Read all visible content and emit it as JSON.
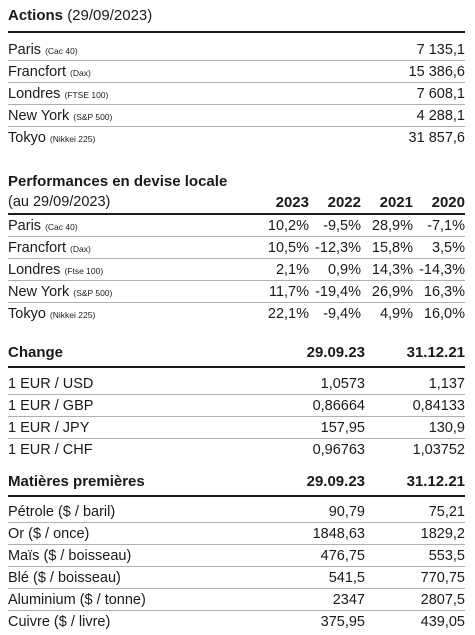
{
  "actions": {
    "title_bold": "Actions",
    "title_date": "(29/09/2023)",
    "rows": [
      {
        "name": "Paris",
        "index": "(Cac 40)",
        "value": "7 135,1"
      },
      {
        "name": "Francfort",
        "index": "(Dax)",
        "value": "15 386,6"
      },
      {
        "name": "Londres",
        "index": "(FTSE 100)",
        "value": "7 608,1"
      },
      {
        "name": "New York",
        "index": "(S&P 500)",
        "value": "4 288,1"
      },
      {
        "name": "Tokyo",
        "index": "(Nikkei 225)",
        "value": "31 857,6"
      }
    ]
  },
  "performances": {
    "title": "Performances en devise locale",
    "subtitle": "(au 29/09/2023)",
    "years": [
      "2023",
      "2022",
      "2021",
      "2020"
    ],
    "rows": [
      {
        "name": "Paris",
        "index": "(Cac 40)",
        "values": [
          "10,2%",
          "-9,5%",
          "28,9%",
          "-7,1%"
        ]
      },
      {
        "name": "Francfort",
        "index": "(Dax)",
        "values": [
          "10,5%",
          "-12,3%",
          "15,8%",
          "3,5%"
        ]
      },
      {
        "name": "Londres",
        "index": "(Ftse 100)",
        "values": [
          "2,1%",
          "0,9%",
          "14,3%",
          "-14,3%"
        ]
      },
      {
        "name": "New York",
        "index": "(S&P 500)",
        "values": [
          "11,7%",
          "-19,4%",
          "26,9%",
          "16,3%"
        ]
      },
      {
        "name": "Tokyo",
        "index": "(Nikkei 225)",
        "values": [
          "22,1%",
          "-9,4%",
          "4,9%",
          "16,0%"
        ]
      }
    ]
  },
  "change": {
    "title": "Change",
    "col1": "29.09.23",
    "col2": "31.12.21",
    "rows": [
      {
        "name": "1 EUR / USD",
        "v1": "1,0573",
        "v2": "1,137"
      },
      {
        "name": "1 EUR / GBP",
        "v1": "0,86664",
        "v2": "0,84133"
      },
      {
        "name": "1 EUR / JPY",
        "v1": "157,95",
        "v2": "130,9"
      },
      {
        "name": "1 EUR / CHF",
        "v1": "0,96763",
        "v2": "1,03752"
      }
    ]
  },
  "matieres": {
    "title": "Matières premières",
    "col1": "29.09.23",
    "col2": "31.12.21",
    "rows": [
      {
        "name": "Pétrole ($ / baril)",
        "v1": "90,79",
        "v2": "75,21"
      },
      {
        "name": "Or ($ / once)",
        "v1": "1848,63",
        "v2": "1829,2"
      },
      {
        "name": "Maïs ($ / boisseau)",
        "v1": "476,75",
        "v2": "553,5"
      },
      {
        "name": "Blé ($ / boisseau)",
        "v1": "541,5",
        "v2": "770,75"
      },
      {
        "name": "Aluminium ($ / tonne)",
        "v1": "2347",
        "v2": "2807,5"
      },
      {
        "name": "Cuivre ($ / livre)",
        "v1": "375,95",
        "v2": "439,05"
      }
    ]
  }
}
